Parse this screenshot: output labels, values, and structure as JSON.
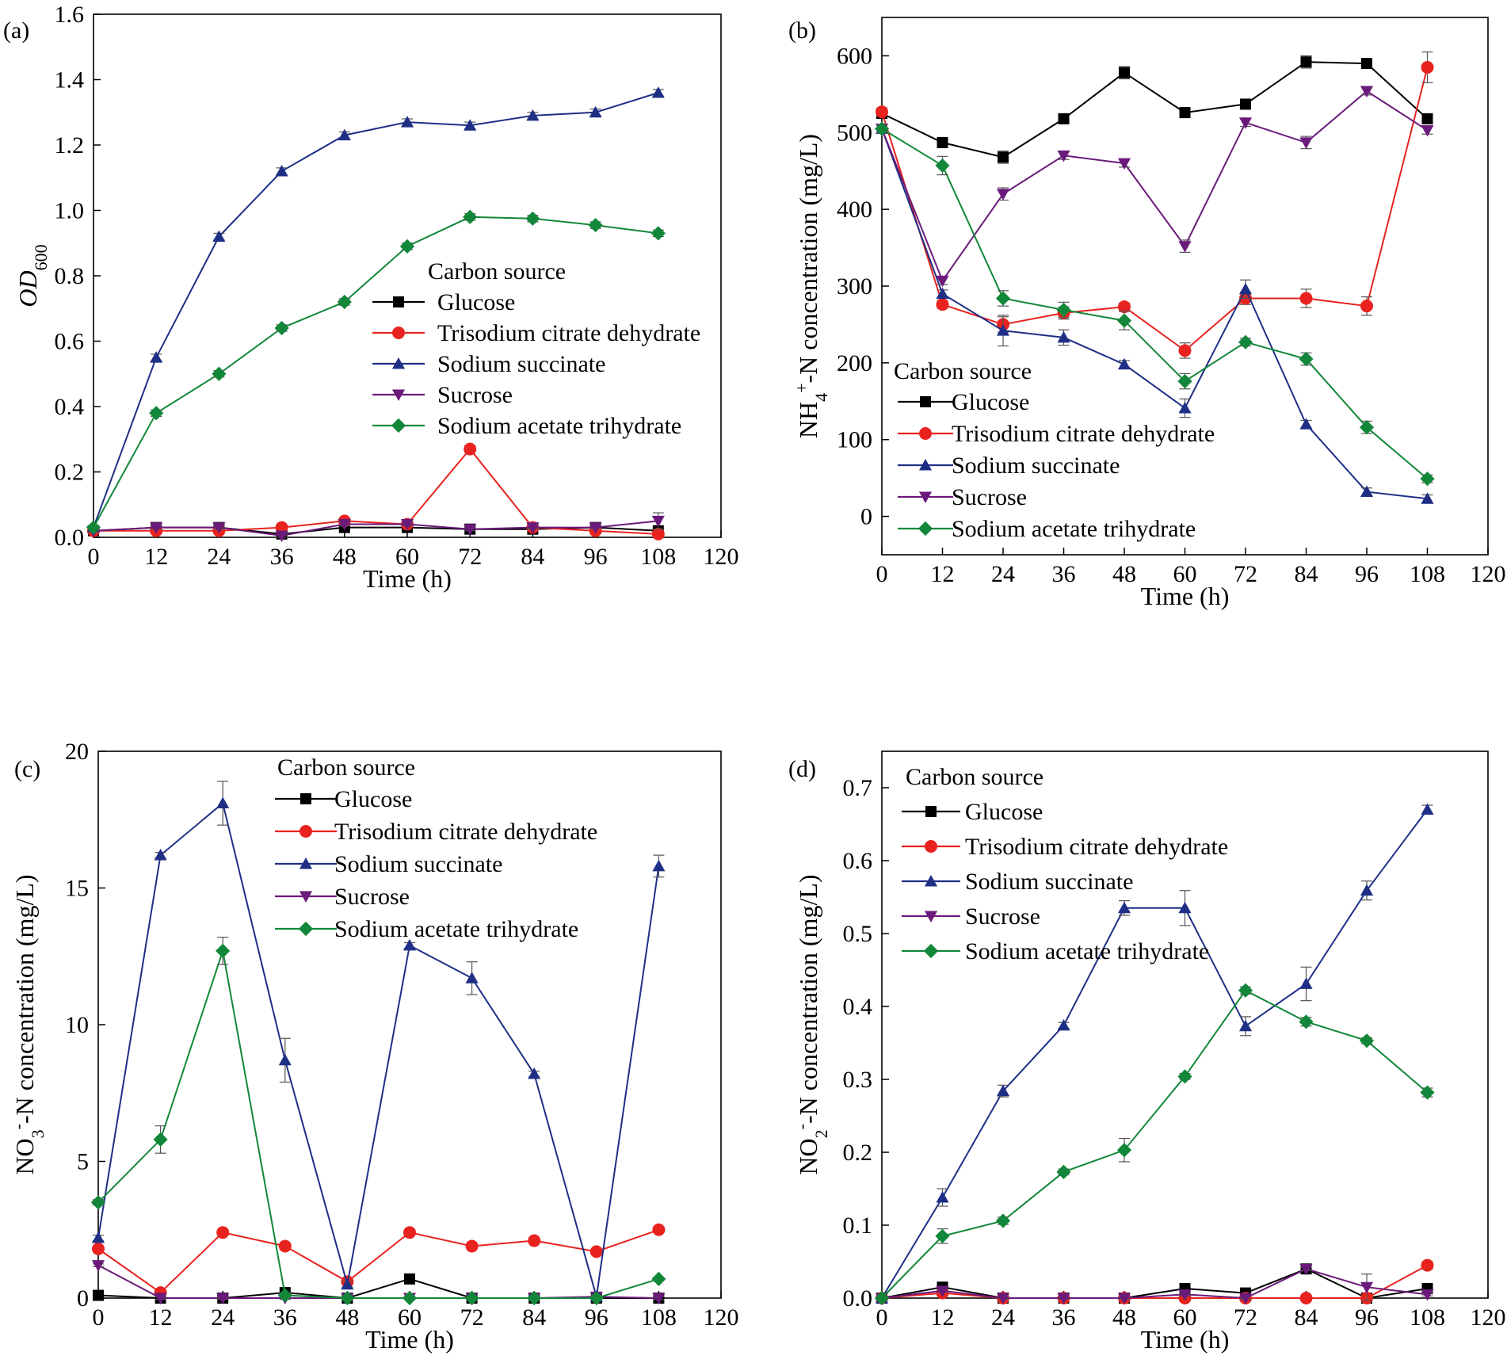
{
  "figure": {
    "colors": {
      "Glucose": "#000000",
      "Trisodium citrate dehydrate": "#e8231f",
      "Sodium succinate": "#1f2f86",
      "Sucrose": "#6a1a7a",
      "Sodium acetate trihydrate": "#12873a"
    },
    "markers": {
      "Glucose": "square",
      "Trisodium citrate dehydrate": "circle",
      "Sodium succinate": "triangle-up",
      "Sucrose": "triangle-down",
      "Sodium acetate trihydrate": "diamond"
    }
  },
  "chart_data": [
    {
      "id": "a",
      "type": "line",
      "panel_label": "(a)",
      "title": "",
      "xlabel": "Time (h)",
      "ylabel_parts": [
        {
          "t": "OD",
          "italic": true
        },
        {
          "t": "600",
          "sub": true
        }
      ],
      "xlim": [
        0,
        120
      ],
      "ylim": [
        0,
        1.6
      ],
      "xticks": [
        0,
        12,
        24,
        36,
        48,
        60,
        72,
        84,
        96,
        108,
        120
      ],
      "xtick_labels": [
        "0",
        "12",
        "24",
        "36",
        "48",
        "60",
        "72",
        "84",
        "96",
        "108",
        "120"
      ],
      "yticks": [
        0,
        0.2,
        0.4,
        0.6,
        0.8,
        1.0,
        1.2,
        1.4,
        1.6
      ],
      "ytick_labels": [
        "0.0",
        "0.2",
        "0.4",
        "0.6",
        "0.8",
        "1.0",
        "1.2",
        "1.4",
        "1.6"
      ],
      "x": [
        0,
        12,
        24,
        36,
        48,
        60,
        72,
        84,
        96,
        108
      ],
      "legend_title": "Carbon source",
      "legend_position": "center-right",
      "series": [
        {
          "name": "Glucose",
          "values": [
            0.02,
            0.03,
            0.03,
            0.01,
            0.03,
            0.03,
            0.025,
            0.025,
            0.03,
            0.02
          ],
          "err": [
            0.005,
            0.005,
            0.005,
            0.005,
            0.005,
            0.005,
            0.005,
            0.005,
            0.005,
            0.005
          ]
        },
        {
          "name": "Trisodium citrate dehydrate",
          "values": [
            0.02,
            0.02,
            0.02,
            0.03,
            0.05,
            0.04,
            0.27,
            0.03,
            0.02,
            0.01
          ],
          "err": [
            0.005,
            0.005,
            0.005,
            0.005,
            0.008,
            0.005,
            0.01,
            0.005,
            0.005,
            0.005
          ]
        },
        {
          "name": "Sodium succinate",
          "values": [
            0.03,
            0.55,
            0.92,
            1.12,
            1.23,
            1.27,
            1.26,
            1.29,
            1.3,
            1.36
          ],
          "err": [
            0.005,
            0.01,
            0.01,
            0.01,
            0.01,
            0.01,
            0.01,
            0.01,
            0.01,
            0.01
          ]
        },
        {
          "name": "Sucrose",
          "values": [
            0.02,
            0.03,
            0.03,
            0.005,
            0.04,
            0.04,
            0.025,
            0.03,
            0.03,
            0.05
          ],
          "err": [
            0.005,
            0.005,
            0.005,
            0.005,
            0.005,
            0.005,
            0.005,
            0.005,
            0.005,
            0.025
          ]
        },
        {
          "name": "Sodium acetate trihydrate",
          "values": [
            0.03,
            0.38,
            0.5,
            0.64,
            0.72,
            0.89,
            0.98,
            0.975,
            0.955,
            0.93
          ],
          "err": [
            0.005,
            0.01,
            0.01,
            0.01,
            0.01,
            0.01,
            0.01,
            0.01,
            0.01,
            0.01
          ]
        }
      ]
    },
    {
      "id": "b",
      "type": "line",
      "panel_label": "(b)",
      "title": "",
      "xlabel": "Time (h)",
      "ylabel_parts": [
        {
          "t": "NH"
        },
        {
          "t": "4",
          "sub": true
        },
        {
          "t": "+",
          "sup": true
        },
        {
          "t": "-N concentration (mg/L)"
        }
      ],
      "xlim": [
        0,
        120
      ],
      "ylim": [
        -50,
        650
      ],
      "xticks": [
        0,
        12,
        24,
        36,
        48,
        60,
        72,
        84,
        96,
        108,
        120
      ],
      "xtick_labels": [
        "0",
        "12",
        "24",
        "36",
        "48",
        "60",
        "72",
        "84",
        "96",
        "108",
        "120"
      ],
      "yticks": [
        0,
        100,
        200,
        300,
        400,
        500,
        600
      ],
      "ytick_labels": [
        "0",
        "100",
        "200",
        "300",
        "400",
        "500",
        "600"
      ],
      "x": [
        0,
        12,
        24,
        36,
        48,
        60,
        72,
        84,
        96,
        108
      ],
      "legend_title": "Carbon source",
      "legend_position": "bottom-left",
      "series": [
        {
          "name": "Glucose",
          "values": [
            525,
            487,
            468,
            518,
            578,
            526,
            537,
            592,
            590,
            518
          ],
          "err": [
            5,
            5,
            8,
            5,
            8,
            5,
            5,
            8,
            5,
            5
          ]
        },
        {
          "name": "Trisodium citrate dehydrate",
          "values": [
            527,
            276,
            250,
            265,
            273,
            216,
            284,
            284,
            274,
            585
          ],
          "err": [
            5,
            5,
            10,
            8,
            5,
            10,
            8,
            12,
            12,
            20
          ]
        },
        {
          "name": "Sodium succinate",
          "values": [
            505,
            290,
            242,
            233,
            198,
            141,
            296,
            120,
            32,
            23
          ],
          "err": [
            5,
            5,
            20,
            10,
            5,
            12,
            12,
            5,
            5,
            5
          ]
        },
        {
          "name": "Sucrose",
          "values": [
            505,
            307,
            420,
            470,
            460,
            352,
            513,
            487,
            554,
            503
          ],
          "err": [
            5,
            5,
            8,
            5,
            5,
            8,
            5,
            8,
            5,
            5
          ]
        },
        {
          "name": "Sodium acetate trihydrate",
          "values": [
            505,
            457,
            284,
            269,
            255,
            176,
            227,
            205,
            116,
            49
          ],
          "err": [
            5,
            12,
            10,
            10,
            12,
            10,
            5,
            8,
            8,
            5
          ]
        }
      ]
    },
    {
      "id": "c",
      "type": "line",
      "panel_label": "(c)",
      "title": "",
      "xlabel": "Time (h)",
      "ylabel_parts": [
        {
          "t": "NO"
        },
        {
          "t": "3",
          "sub": true
        },
        {
          "t": "-",
          "sup": true
        },
        {
          "t": "-N concentration (mg/L)"
        }
      ],
      "xlim": [
        0,
        120
      ],
      "ylim": [
        0,
        20
      ],
      "xticks": [
        0,
        12,
        24,
        36,
        48,
        60,
        72,
        84,
        96,
        108,
        120
      ],
      "xtick_labels": [
        "0",
        "12",
        "24",
        "36",
        "48",
        "60",
        "72",
        "84",
        "96",
        "108",
        "120"
      ],
      "yticks": [
        0,
        5,
        10,
        15,
        20
      ],
      "ytick_labels": [
        "0",
        "5",
        "10",
        "15",
        "20"
      ],
      "x": [
        0,
        12,
        24,
        36,
        48,
        60,
        72,
        84,
        96,
        108
      ],
      "legend_title": "Carbon source",
      "legend_position": "top-center",
      "series": [
        {
          "name": "Glucose",
          "values": [
            0.1,
            0,
            0,
            0.2,
            0,
            0.7,
            0,
            0,
            0,
            0
          ],
          "err": [
            0.05,
            0.05,
            0.05,
            0.05,
            0.05,
            0.1,
            0.05,
            0.05,
            0.05,
            0.05
          ]
        },
        {
          "name": "Trisodium citrate dehydrate",
          "values": [
            1.8,
            0.2,
            2.4,
            1.9,
            0.6,
            2.4,
            1.9,
            2.1,
            1.7,
            2.5
          ],
          "err": [
            0.1,
            0.1,
            0.1,
            0.1,
            0.1,
            0.1,
            0.1,
            0.1,
            0.1,
            0.1
          ]
        },
        {
          "name": "Sodium succinate",
          "values": [
            2.2,
            16.2,
            18.1,
            8.7,
            0.5,
            12.9,
            11.7,
            8.2,
            0.05,
            15.8
          ],
          "err": [
            0.1,
            0.1,
            0.8,
            0.8,
            0.1,
            0.1,
            0.6,
            0.1,
            0.05,
            0.4
          ]
        },
        {
          "name": "Sucrose",
          "values": [
            1.2,
            0,
            0,
            0,
            0,
            0,
            0,
            0,
            0.05,
            0
          ],
          "err": [
            0.05,
            0.05,
            0.05,
            0.05,
            0.05,
            0.05,
            0.05,
            0.05,
            0.05,
            0.05
          ]
        },
        {
          "name": "Sodium acetate trihydrate",
          "values": [
            3.5,
            5.8,
            12.7,
            0.1,
            0,
            0,
            0,
            0,
            0,
            0.7
          ],
          "err": [
            0.1,
            0.5,
            0.5,
            0.1,
            0.05,
            0.05,
            0.05,
            0.05,
            0.05,
            0.05
          ]
        }
      ]
    },
    {
      "id": "d",
      "type": "line",
      "panel_label": "(d)",
      "title": "",
      "xlabel": "Time (h)",
      "ylabel_parts": [
        {
          "t": "NO"
        },
        {
          "t": "2",
          "sub": true
        },
        {
          "t": "-",
          "sup": true
        },
        {
          "t": "-N concentration (mg/L)"
        }
      ],
      "xlim": [
        0,
        120
      ],
      "ylim": [
        0,
        0.75
      ],
      "xticks": [
        0,
        12,
        24,
        36,
        48,
        60,
        72,
        84,
        96,
        108,
        120
      ],
      "xtick_labels": [
        "0",
        "12",
        "24",
        "36",
        "48",
        "60",
        "72",
        "84",
        "96",
        "108",
        "120"
      ],
      "yticks": [
        0,
        0.1,
        0.2,
        0.3,
        0.4,
        0.5,
        0.6,
        0.7
      ],
      "ytick_labels": [
        "0.0",
        "0.1",
        "0.2",
        "0.3",
        "0.4",
        "0.5",
        "0.6",
        "0.7"
      ],
      "x": [
        0,
        12,
        24,
        36,
        48,
        60,
        72,
        84,
        96,
        108
      ],
      "legend_title": "Carbon source",
      "legend_position": "top-left",
      "series": [
        {
          "name": "Glucose",
          "values": [
            0,
            0.015,
            0,
            0,
            0,
            0.013,
            0.007,
            0.04,
            0,
            0.013
          ],
          "err": [
            0.002,
            0.002,
            0.002,
            0.002,
            0.002,
            0.002,
            0.002,
            0.002,
            0.002,
            0.002
          ]
        },
        {
          "name": "Trisodium citrate dehydrate",
          "values": [
            0,
            0.007,
            0,
            0,
            0,
            0,
            0,
            0,
            0,
            0.045
          ],
          "err": [
            0.002,
            0.002,
            0.002,
            0.002,
            0.002,
            0.002,
            0.002,
            0.002,
            0.002,
            0.005
          ]
        },
        {
          "name": "Sodium succinate",
          "values": [
            0,
            0.138,
            0.284,
            0.374,
            0.535,
            0.535,
            0.373,
            0.431,
            0.559,
            0.67
          ],
          "err": [
            0.002,
            0.012,
            0.008,
            0.004,
            0.01,
            0.024,
            0.013,
            0.023,
            0.013,
            0.006
          ]
        },
        {
          "name": "Sucrose",
          "values": [
            0,
            0.01,
            0,
            0,
            0,
            0.005,
            0,
            0.04,
            0.015,
            0.005
          ],
          "err": [
            0.002,
            0.002,
            0.002,
            0.002,
            0.002,
            0.002,
            0.002,
            0.002,
            0.018,
            0.002
          ]
        },
        {
          "name": "Sodium acetate trihydrate",
          "values": [
            0,
            0.085,
            0.106,
            0.173,
            0.203,
            0.304,
            0.422,
            0.379,
            0.353,
            0.282
          ],
          "err": [
            0.002,
            0.01,
            0.005,
            0.004,
            0.016,
            0.004,
            0.005,
            0.006,
            0.004,
            0.006
          ]
        }
      ]
    }
  ]
}
